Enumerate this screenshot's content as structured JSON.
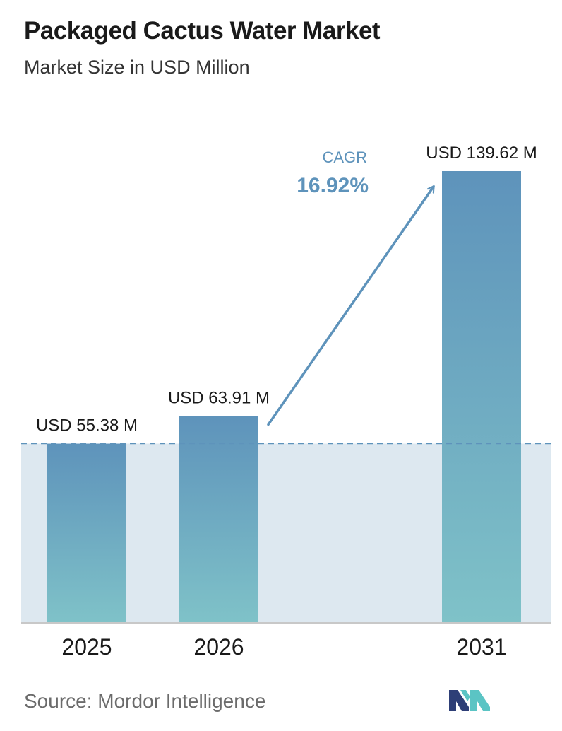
{
  "header": {
    "title": "Packaged Cactus Water Market",
    "subtitle": "Market Size in USD Million"
  },
  "chart_data": {
    "type": "bar",
    "categories": [
      "2025",
      "2026",
      "2031"
    ],
    "values": [
      55.38,
      63.91,
      139.62
    ],
    "value_labels": [
      "USD 55.38 M",
      "USD 63.91 M",
      "USD 139.62 M"
    ],
    "cagr_label": "CAGR",
    "cagr_value": "16.92%",
    "baseline_value": 55.38,
    "ylim": [
      0,
      139.62
    ],
    "grid": false,
    "colors": {
      "bar_top": "#5e93bb",
      "bar_bottom": "#7fc2c8",
      "shaded_area": "#dde8f0",
      "arrow": "#5e93bb",
      "cagr_text": "#5e93bb",
      "axis": "#c8c8c8",
      "dashed_line": "#5e93bb"
    }
  },
  "footer": {
    "source": "Source:  Mordor Intelligence",
    "logo_icon": "mordor-intelligence-logo-icon"
  }
}
